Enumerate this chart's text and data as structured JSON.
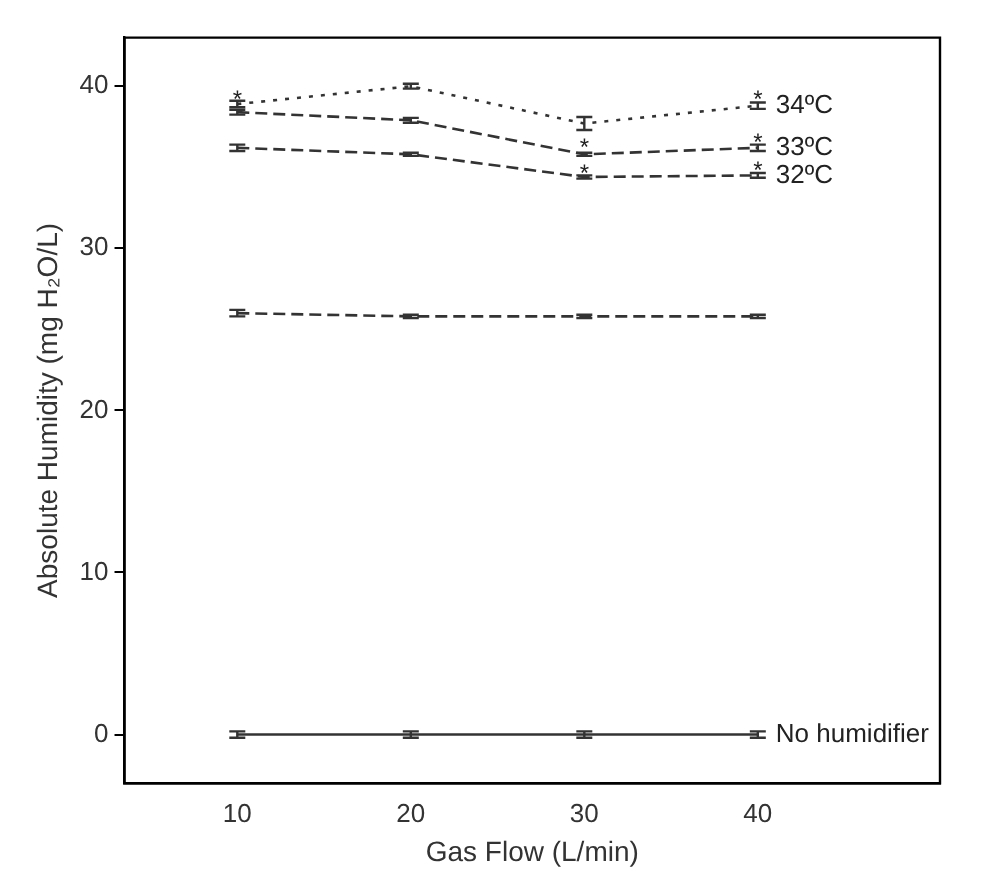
{
  "chart_data": {
    "type": "line",
    "xlabel": "Gas Flow (L/min)",
    "ylabel": "Absolute Humidity (mg H₂O/L)",
    "x": [
      10,
      20,
      30,
      40
    ],
    "series": [
      {
        "name": "34ºC",
        "color": "#333333",
        "line_style": "dotted",
        "values": [
          38.9,
          40.0,
          37.7,
          38.8
        ],
        "errors": [
          0.2,
          0.15,
          0.4,
          0.2
        ]
      },
      {
        "name": "33ºC",
        "color": "#333333",
        "line_style": "dashed",
        "values": [
          38.4,
          37.9,
          35.8,
          36.2
        ],
        "errors": [
          0.15,
          0.15,
          0.1,
          0.2
        ]
      },
      {
        "name": "32ºC",
        "color": "#333333",
        "line_style": "dashed",
        "values": [
          36.2,
          35.8,
          34.4,
          34.5
        ],
        "errors": [
          0.2,
          0.1,
          0.1,
          0.15
        ]
      },
      {
        "color": "#333333",
        "line_style": "dashed",
        "values": [
          26.0,
          25.8,
          25.8,
          25.8
        ],
        "errors": [
          0.2,
          0.1,
          0.1,
          0.1
        ]
      },
      {
        "name": "No humidifier",
        "color": "#333333",
        "line_style": "solid",
        "values": [
          0,
          0,
          0,
          0
        ],
        "errors": [
          0.2,
          0.2,
          0.2,
          0.2
        ]
      }
    ],
    "annotations": [
      {
        "text": "*",
        "x": 10,
        "y": 39.4
      },
      {
        "text": "*",
        "x": 30,
        "y": 36.4
      },
      {
        "text": "*",
        "x": 30,
        "y": 34.8
      },
      {
        "text": "*",
        "x": 40,
        "y": 39.4
      },
      {
        "text": "*",
        "x": 40,
        "y": 36.7
      },
      {
        "text": "*",
        "x": 40,
        "y": 35.0
      }
    ],
    "xlim": [
      3.5,
      50.5
    ],
    "xticks": [
      10,
      20,
      30,
      40
    ],
    "ylim": [
      -3,
      43
    ],
    "yticks": [
      0,
      10,
      20,
      30,
      40
    ],
    "marker": "none",
    "grid": false,
    "legend": false
  }
}
